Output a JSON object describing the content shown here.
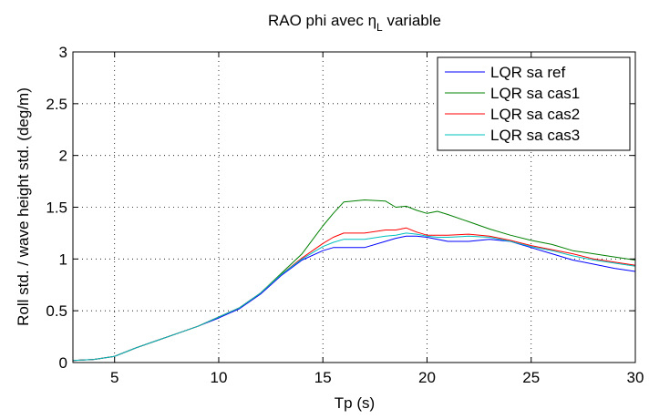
{
  "chart_data": {
    "type": "line",
    "title_main": "RAO phi avec η",
    "title_sub": "L",
    "title_suffix": " variable",
    "xlabel": "Tp (s)",
    "ylabel": "Roll std. / wave height std. (deg/m)",
    "xlim": [
      3,
      30
    ],
    "ylim": [
      0,
      3
    ],
    "xticks": [
      5,
      10,
      15,
      20,
      25,
      30
    ],
    "xtick_labels": [
      "5",
      "10",
      "15",
      "20",
      "25",
      "30"
    ],
    "yticks": [
      0,
      0.5,
      1,
      1.5,
      2,
      2.5,
      3
    ],
    "ytick_labels": [
      "0",
      "0.5",
      "1",
      "1.5",
      "2",
      "2.5",
      "3"
    ],
    "grid": true,
    "legend_position": "top-right",
    "x": [
      3,
      4,
      5,
      6,
      7,
      8,
      9,
      10,
      11,
      12,
      13,
      14,
      15,
      15.5,
      16,
      17,
      18,
      18.5,
      19,
      19.5,
      20,
      20.5,
      21,
      22,
      23,
      24,
      25,
      26,
      27,
      28,
      29,
      30
    ],
    "series": [
      {
        "name": "LQR sa ref",
        "color": "#0000ff",
        "values": [
          0.02,
          0.03,
          0.06,
          0.14,
          0.21,
          0.28,
          0.35,
          0.43,
          0.52,
          0.66,
          0.84,
          0.99,
          1.08,
          1.11,
          1.11,
          1.11,
          1.17,
          1.2,
          1.22,
          1.22,
          1.21,
          1.19,
          1.17,
          1.17,
          1.19,
          1.17,
          1.11,
          1.05,
          0.99,
          0.95,
          0.91,
          0.88
        ]
      },
      {
        "name": "LQR sa cas1",
        "color": "#008000",
        "values": [
          0.02,
          0.03,
          0.06,
          0.14,
          0.21,
          0.28,
          0.35,
          0.44,
          0.53,
          0.67,
          0.86,
          1.05,
          1.32,
          1.44,
          1.55,
          1.57,
          1.56,
          1.5,
          1.51,
          1.47,
          1.44,
          1.46,
          1.43,
          1.36,
          1.29,
          1.23,
          1.18,
          1.14,
          1.08,
          1.05,
          1.02,
          0.99
        ]
      },
      {
        "name": "LQR sa cas2",
        "color": "#ff0000",
        "values": [
          0.02,
          0.03,
          0.06,
          0.14,
          0.21,
          0.28,
          0.35,
          0.44,
          0.53,
          0.67,
          0.85,
          1.01,
          1.15,
          1.21,
          1.25,
          1.25,
          1.28,
          1.28,
          1.3,
          1.26,
          1.23,
          1.23,
          1.23,
          1.24,
          1.22,
          1.18,
          1.13,
          1.09,
          1.05,
          1.0,
          0.97,
          0.94
        ]
      },
      {
        "name": "LQR sa cas3",
        "color": "#00bfbf",
        "values": [
          0.02,
          0.03,
          0.06,
          0.14,
          0.21,
          0.28,
          0.35,
          0.44,
          0.53,
          0.67,
          0.85,
          1.0,
          1.12,
          1.16,
          1.19,
          1.19,
          1.22,
          1.23,
          1.25,
          1.24,
          1.22,
          1.21,
          1.21,
          1.22,
          1.21,
          1.17,
          1.12,
          1.08,
          1.03,
          0.99,
          0.96,
          0.93
        ]
      }
    ]
  }
}
